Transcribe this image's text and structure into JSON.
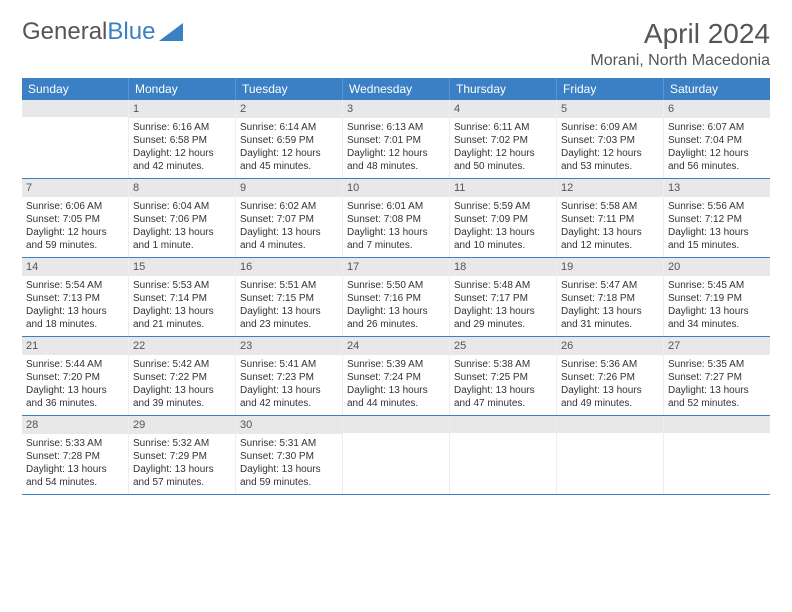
{
  "brand": {
    "part1": "General",
    "part2": "Blue"
  },
  "title": "April 2024",
  "location": "Morani, North Macedonia",
  "colors": {
    "header_bg": "#3b7fc4",
    "header_text": "#ffffff",
    "daynum_bg": "#e8e8e8",
    "row_border": "#3b7fc4",
    "text": "#333333",
    "brand_gray": "#555555",
    "brand_blue": "#3b7fc4"
  },
  "day_headers": [
    "Sunday",
    "Monday",
    "Tuesday",
    "Wednesday",
    "Thursday",
    "Friday",
    "Saturday"
  ],
  "weeks": [
    [
      {
        "day": "",
        "sunrise": "",
        "sunset": "",
        "daylight1": "",
        "daylight2": ""
      },
      {
        "day": "1",
        "sunrise": "Sunrise: 6:16 AM",
        "sunset": "Sunset: 6:58 PM",
        "daylight1": "Daylight: 12 hours",
        "daylight2": "and 42 minutes."
      },
      {
        "day": "2",
        "sunrise": "Sunrise: 6:14 AM",
        "sunset": "Sunset: 6:59 PM",
        "daylight1": "Daylight: 12 hours",
        "daylight2": "and 45 minutes."
      },
      {
        "day": "3",
        "sunrise": "Sunrise: 6:13 AM",
        "sunset": "Sunset: 7:01 PM",
        "daylight1": "Daylight: 12 hours",
        "daylight2": "and 48 minutes."
      },
      {
        "day": "4",
        "sunrise": "Sunrise: 6:11 AM",
        "sunset": "Sunset: 7:02 PM",
        "daylight1": "Daylight: 12 hours",
        "daylight2": "and 50 minutes."
      },
      {
        "day": "5",
        "sunrise": "Sunrise: 6:09 AM",
        "sunset": "Sunset: 7:03 PM",
        "daylight1": "Daylight: 12 hours",
        "daylight2": "and 53 minutes."
      },
      {
        "day": "6",
        "sunrise": "Sunrise: 6:07 AM",
        "sunset": "Sunset: 7:04 PM",
        "daylight1": "Daylight: 12 hours",
        "daylight2": "and 56 minutes."
      }
    ],
    [
      {
        "day": "7",
        "sunrise": "Sunrise: 6:06 AM",
        "sunset": "Sunset: 7:05 PM",
        "daylight1": "Daylight: 12 hours",
        "daylight2": "and 59 minutes."
      },
      {
        "day": "8",
        "sunrise": "Sunrise: 6:04 AM",
        "sunset": "Sunset: 7:06 PM",
        "daylight1": "Daylight: 13 hours",
        "daylight2": "and 1 minute."
      },
      {
        "day": "9",
        "sunrise": "Sunrise: 6:02 AM",
        "sunset": "Sunset: 7:07 PM",
        "daylight1": "Daylight: 13 hours",
        "daylight2": "and 4 minutes."
      },
      {
        "day": "10",
        "sunrise": "Sunrise: 6:01 AM",
        "sunset": "Sunset: 7:08 PM",
        "daylight1": "Daylight: 13 hours",
        "daylight2": "and 7 minutes."
      },
      {
        "day": "11",
        "sunrise": "Sunrise: 5:59 AM",
        "sunset": "Sunset: 7:09 PM",
        "daylight1": "Daylight: 13 hours",
        "daylight2": "and 10 minutes."
      },
      {
        "day": "12",
        "sunrise": "Sunrise: 5:58 AM",
        "sunset": "Sunset: 7:11 PM",
        "daylight1": "Daylight: 13 hours",
        "daylight2": "and 12 minutes."
      },
      {
        "day": "13",
        "sunrise": "Sunrise: 5:56 AM",
        "sunset": "Sunset: 7:12 PM",
        "daylight1": "Daylight: 13 hours",
        "daylight2": "and 15 minutes."
      }
    ],
    [
      {
        "day": "14",
        "sunrise": "Sunrise: 5:54 AM",
        "sunset": "Sunset: 7:13 PM",
        "daylight1": "Daylight: 13 hours",
        "daylight2": "and 18 minutes."
      },
      {
        "day": "15",
        "sunrise": "Sunrise: 5:53 AM",
        "sunset": "Sunset: 7:14 PM",
        "daylight1": "Daylight: 13 hours",
        "daylight2": "and 21 minutes."
      },
      {
        "day": "16",
        "sunrise": "Sunrise: 5:51 AM",
        "sunset": "Sunset: 7:15 PM",
        "daylight1": "Daylight: 13 hours",
        "daylight2": "and 23 minutes."
      },
      {
        "day": "17",
        "sunrise": "Sunrise: 5:50 AM",
        "sunset": "Sunset: 7:16 PM",
        "daylight1": "Daylight: 13 hours",
        "daylight2": "and 26 minutes."
      },
      {
        "day": "18",
        "sunrise": "Sunrise: 5:48 AM",
        "sunset": "Sunset: 7:17 PM",
        "daylight1": "Daylight: 13 hours",
        "daylight2": "and 29 minutes."
      },
      {
        "day": "19",
        "sunrise": "Sunrise: 5:47 AM",
        "sunset": "Sunset: 7:18 PM",
        "daylight1": "Daylight: 13 hours",
        "daylight2": "and 31 minutes."
      },
      {
        "day": "20",
        "sunrise": "Sunrise: 5:45 AM",
        "sunset": "Sunset: 7:19 PM",
        "daylight1": "Daylight: 13 hours",
        "daylight2": "and 34 minutes."
      }
    ],
    [
      {
        "day": "21",
        "sunrise": "Sunrise: 5:44 AM",
        "sunset": "Sunset: 7:20 PM",
        "daylight1": "Daylight: 13 hours",
        "daylight2": "and 36 minutes."
      },
      {
        "day": "22",
        "sunrise": "Sunrise: 5:42 AM",
        "sunset": "Sunset: 7:22 PM",
        "daylight1": "Daylight: 13 hours",
        "daylight2": "and 39 minutes."
      },
      {
        "day": "23",
        "sunrise": "Sunrise: 5:41 AM",
        "sunset": "Sunset: 7:23 PM",
        "daylight1": "Daylight: 13 hours",
        "daylight2": "and 42 minutes."
      },
      {
        "day": "24",
        "sunrise": "Sunrise: 5:39 AM",
        "sunset": "Sunset: 7:24 PM",
        "daylight1": "Daylight: 13 hours",
        "daylight2": "and 44 minutes."
      },
      {
        "day": "25",
        "sunrise": "Sunrise: 5:38 AM",
        "sunset": "Sunset: 7:25 PM",
        "daylight1": "Daylight: 13 hours",
        "daylight2": "and 47 minutes."
      },
      {
        "day": "26",
        "sunrise": "Sunrise: 5:36 AM",
        "sunset": "Sunset: 7:26 PM",
        "daylight1": "Daylight: 13 hours",
        "daylight2": "and 49 minutes."
      },
      {
        "day": "27",
        "sunrise": "Sunrise: 5:35 AM",
        "sunset": "Sunset: 7:27 PM",
        "daylight1": "Daylight: 13 hours",
        "daylight2": "and 52 minutes."
      }
    ],
    [
      {
        "day": "28",
        "sunrise": "Sunrise: 5:33 AM",
        "sunset": "Sunset: 7:28 PM",
        "daylight1": "Daylight: 13 hours",
        "daylight2": "and 54 minutes."
      },
      {
        "day": "29",
        "sunrise": "Sunrise: 5:32 AM",
        "sunset": "Sunset: 7:29 PM",
        "daylight1": "Daylight: 13 hours",
        "daylight2": "and 57 minutes."
      },
      {
        "day": "30",
        "sunrise": "Sunrise: 5:31 AM",
        "sunset": "Sunset: 7:30 PM",
        "daylight1": "Daylight: 13 hours",
        "daylight2": "and 59 minutes."
      },
      {
        "day": "",
        "sunrise": "",
        "sunset": "",
        "daylight1": "",
        "daylight2": ""
      },
      {
        "day": "",
        "sunrise": "",
        "sunset": "",
        "daylight1": "",
        "daylight2": ""
      },
      {
        "day": "",
        "sunrise": "",
        "sunset": "",
        "daylight1": "",
        "daylight2": ""
      },
      {
        "day": "",
        "sunrise": "",
        "sunset": "",
        "daylight1": "",
        "daylight2": ""
      }
    ]
  ]
}
